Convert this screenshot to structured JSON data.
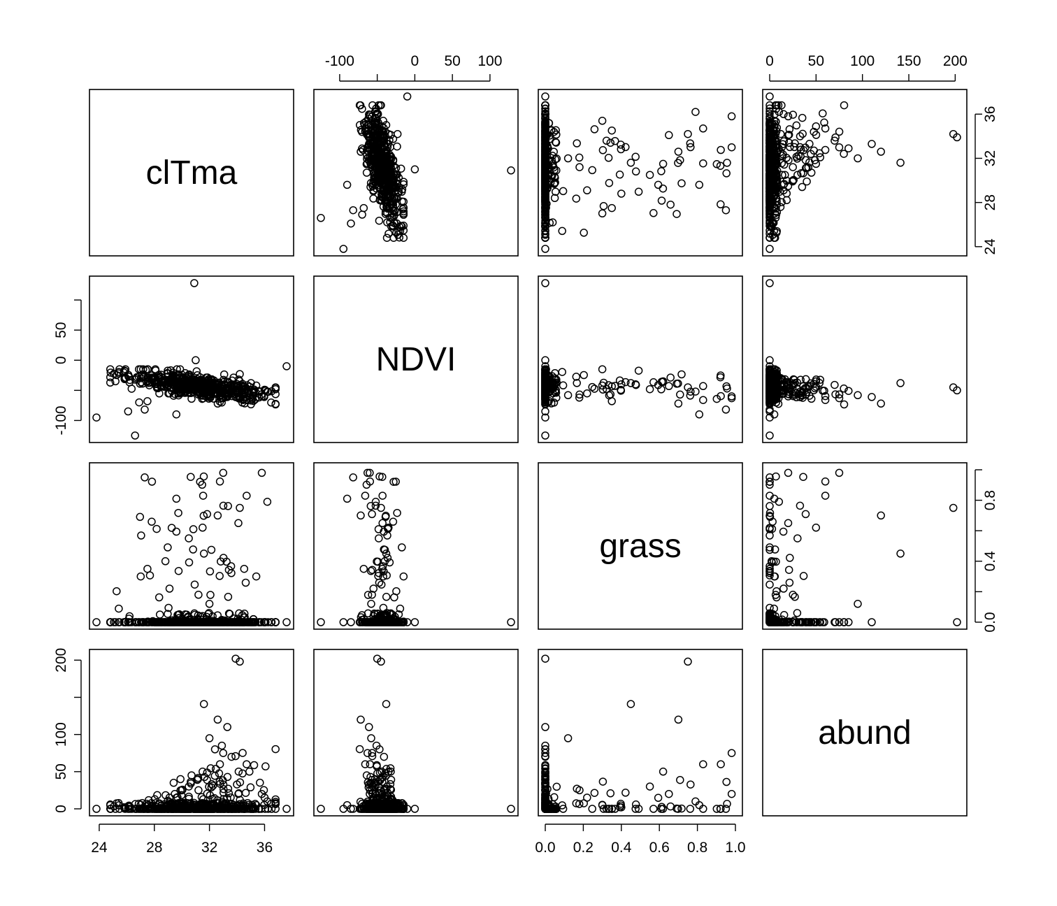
{
  "chart_data": {
    "type": "scatter",
    "kind": "scatterplot-matrix",
    "variables": [
      "clTma",
      "NDVI",
      "grass",
      "abund"
    ],
    "ranges": {
      "clTma": [
        23.8,
        37.6
      ],
      "NDVI": [
        -125,
        128
      ],
      "grass": [
        0,
        1
      ],
      "abund": [
        0,
        205
      ]
    },
    "ticks": {
      "clTma": [
        24,
        28,
        32,
        36
      ],
      "NDVI": [
        -100,
        -50,
        0,
        50,
        100
      ],
      "grass": [
        0.0,
        0.2,
        0.4,
        0.6,
        0.8,
        1.0
      ],
      "abund": [
        0,
        50,
        100,
        150,
        200
      ]
    },
    "tick_labels": {
      "clTma": [
        "24",
        "28",
        "32",
        "36"
      ],
      "NDVI_top": [
        "-100",
        "0",
        "50",
        "100"
      ],
      "NDVI_left": [
        "-100",
        "0",
        "50"
      ],
      "grass_right": [
        "0.0",
        "0.4",
        "0.8"
      ],
      "grass_bottom": [
        "0.0",
        "0.2",
        "0.4",
        "0.6",
        "0.8",
        "1.0"
      ],
      "abund_top": [
        "0",
        "50",
        "100",
        "150",
        "200"
      ],
      "abund_left": [
        "0",
        "50",
        "100",
        "200"
      ]
    },
    "grid": false,
    "legend": "none",
    "n_points": 560,
    "observations": {
      "clTma": [
        26.6,
        37.6,
        23.8,
        31.0,
        28.4,
        26.9,
        30.9,
        35.8,
        34.2,
        36.2,
        27.3,
        29.6,
        28.8,
        29.1,
        31.5,
        33.0,
        30.5,
        32.0,
        34.7,
        35.4,
        33.9,
        31.6,
        32.6,
        28.2,
        30.1,
        33.3,
        34.9,
        27.5,
        29.9,
        32.4,
        31.2,
        33.6,
        35.1,
        36.0,
        26.1,
        28.0,
        30.7,
        32.9,
        34.1,
        29.4
      ],
      "NDVI": [
        -125,
        -10,
        -95,
        0,
        -30,
        -70,
        128,
        -60,
        -45,
        -52,
        -82,
        -90,
        -40,
        -55,
        -35,
        -63,
        -48,
        -58,
        -66,
        -42,
        -50,
        -38,
        -72,
        -46,
        -54,
        -61,
        -44,
        -68,
        -53,
        -47,
        -57,
        -41,
        -62,
        -49,
        -85,
        -37,
        -64,
        -51,
        -43,
        -59
      ],
      "grass": [
        0.0,
        0.0,
        0.0,
        0.0,
        0.05,
        0.0,
        0.0,
        0.98,
        0.75,
        0.79,
        0.95,
        0.81,
        0.4,
        0.22,
        0.62,
        0.98,
        0.55,
        0.12,
        0.83,
        0.3,
        0.0,
        0.45,
        0.7,
        0.0,
        0.0,
        0.0,
        0.0,
        0.35,
        0.0,
        0.0,
        0.18,
        0.0,
        0.0,
        0.0,
        0.0,
        0.0,
        0.0,
        0.0,
        0.65,
        0.0
      ],
      "abund": [
        0,
        0,
        0,
        0,
        0,
        0,
        0,
        20,
        198,
        10,
        0,
        5,
        2,
        15,
        50,
        75,
        30,
        95,
        60,
        5,
        202,
        141,
        120,
        0,
        8,
        110,
        50,
        0,
        40,
        80,
        25,
        70,
        3,
        15,
        0,
        0,
        45,
        85,
        20,
        35
      ]
    }
  }
}
